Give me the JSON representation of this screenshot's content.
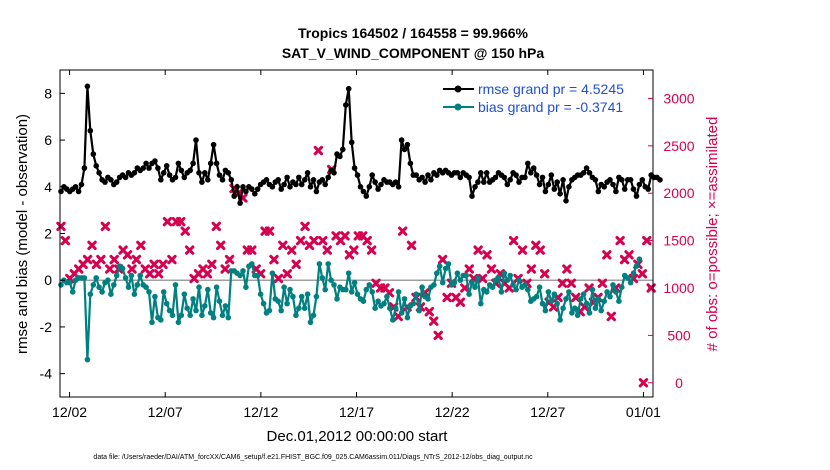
{
  "chart_data": {
    "type": "line",
    "title_line1": "Tropics 164502 / 164558 = 99.966%",
    "title_line2": "SAT_V_WIND_COMPONENT @ 150 hPa",
    "xlabel": "Dec.01,2012 00:00:00 start",
    "ylabel_left": "rmse and bias (model - observation)",
    "ylabel_right": "# of obs: o=possible; ×=assimilated",
    "x_ticks": [
      "12/02",
      "12/07",
      "12/12",
      "12/17",
      "12/22",
      "12/27",
      "01/01"
    ],
    "x_tick_days": [
      1,
      6,
      11,
      16,
      21,
      26,
      31
    ],
    "xlim": [
      0.5,
      31.5
    ],
    "y_left_ticks": [
      "8",
      "6",
      "4",
      "2",
      "0",
      "-2",
      "-4"
    ],
    "y_left_tick_values": [
      8,
      6,
      4,
      2,
      0,
      -2,
      -4
    ],
    "ylim_left": [
      -5,
      9
    ],
    "y_right_ticks": [
      "3000",
      "2500",
      "2000",
      "1500",
      "1000",
      "500",
      "0"
    ],
    "y_right_tick_values": [
      3000,
      2500,
      2000,
      1500,
      1000,
      500,
      0
    ],
    "ylim_right": [
      -150,
      3300
    ],
    "zero_line": true,
    "legend_position": "top-right",
    "legend": [
      "rmse grand pr = 4.5245",
      "bias grand pr = -0.3741"
    ],
    "colors": {
      "rmse": "#000000",
      "bias": "#008080",
      "obs": "#d6004f",
      "legend_text": "#1f4fd6"
    },
    "series": [
      {
        "name": "rmse",
        "values": [
          3.8,
          4.0,
          3.9,
          3.8,
          3.9,
          4.0,
          3.8,
          4.1,
          4.8,
          8.3,
          6.4,
          5.4,
          4.9,
          4.6,
          4.3,
          4.2,
          4.4,
          4.3,
          4.1,
          4.2,
          4.4,
          4.5,
          4.4,
          4.6,
          4.5,
          4.6,
          4.8,
          4.7,
          4.8,
          5.0,
          4.8,
          5.0,
          5.1,
          4.8,
          4.3,
          4.6,
          4.9,
          4.5,
          4.3,
          4.4,
          5.0,
          4.7,
          4.4,
          4.6,
          4.7,
          5.0,
          6.0,
          4.6,
          4.2,
          4.6,
          4.3,
          5.0,
          5.8,
          5.0,
          4.5,
          4.3,
          4.7,
          4.6,
          4.3,
          3.6,
          4.0,
          3.3,
          4.0,
          3.8,
          4.0,
          3.9,
          3.7,
          3.9,
          4.1,
          4.2,
          4.3,
          4.1,
          4.0,
          4.2,
          4.3,
          3.9,
          4.1,
          4.4,
          4.0,
          4.2,
          4.1,
          4.4,
          4.1,
          4.3,
          4.6,
          4.0,
          4.3,
          3.8,
          4.2,
          4.3,
          4.1,
          4.4,
          4.7,
          4.6,
          5.4,
          5.3,
          5.6,
          7.5,
          8.2,
          5.9,
          4.8,
          4.5,
          4.0,
          3.8,
          3.6,
          4.0,
          4.5,
          4.2,
          3.9,
          4.1,
          4.3,
          4.2,
          4.2,
          4.1,
          4.2,
          4.0,
          6.0,
          5.6,
          5.8,
          5.0,
          4.5,
          4.5,
          4.3,
          4.4,
          4.2,
          4.5,
          4.3,
          4.6,
          4.5,
          4.7,
          4.6,
          4.7,
          4.6,
          4.5,
          4.6,
          4.6,
          4.4,
          4.6,
          4.5,
          4.4,
          3.6,
          4.0,
          4.2,
          4.6,
          4.2,
          4.6,
          4.2,
          4.3,
          4.4,
          4.6,
          4.5,
          4.4,
          4.1,
          4.3,
          4.6,
          4.5,
          4.2,
          4.4,
          4.4,
          5.0,
          4.6,
          4.8,
          4.5,
          4.1,
          4.4,
          3.8,
          4.1,
          4.5,
          3.9,
          4.2,
          3.7,
          4.3,
          3.4,
          4.0,
          4.3,
          4.4,
          4.5,
          4.5,
          4.6,
          4.8,
          4.6,
          4.4,
          4.3,
          3.8,
          4.1,
          4.0,
          4.2,
          4.3,
          4.1,
          3.8,
          4.4,
          4.3,
          3.9,
          4.3,
          4.3,
          3.9,
          3.6,
          4.1,
          4.3,
          4.0,
          3.9,
          4.5,
          4.4,
          4.4,
          4.3
        ],
        "x_start_day": 0.55,
        "x_step_days": 0.1535
      },
      {
        "name": "bias",
        "values": [
          -0.2,
          0.0,
          -0.1,
          -0.1,
          -0.5,
          0.0,
          0.1,
          0.1,
          0.1,
          -3.4,
          -0.6,
          -0.2,
          0.1,
          -0.3,
          -0.5,
          -0.1,
          0.0,
          -0.6,
          -0.2,
          0.2,
          0.6,
          0.5,
          0.1,
          -0.3,
          0.2,
          -0.6,
          -0.2,
          0.2,
          -0.2,
          -0.3,
          -0.5,
          -1.8,
          -0.7,
          -1.6,
          -1.7,
          -0.5,
          -1.0,
          -1.3,
          -1.5,
          -0.2,
          -1.8,
          -1.5,
          -0.6,
          -1.2,
          -1.5,
          -0.8,
          -1.3,
          -0.3,
          -1.5,
          -1.1,
          -0.4,
          -1.4,
          -1.6,
          -0.3,
          -0.9,
          -1.5,
          -1.1,
          -1.6,
          0.4,
          0.4,
          0.3,
          0.2,
          0.4,
          -0.3,
          0.6,
          0.7,
          0.2,
          0.2,
          -0.6,
          -1.0,
          -1.4,
          -1.3,
          0.3,
          -0.8,
          -0.9,
          -1.3,
          -0.3,
          -1.0,
          -0.4,
          -0.7,
          -1.5,
          -1.2,
          -0.7,
          -1.2,
          -0.6,
          -1.8,
          -1.5,
          -0.7,
          0.7,
          0.1,
          -0.4,
          0.7,
          0.0,
          -0.2,
          -0.8,
          -0.3,
          -0.4,
          -0.4,
          0.3,
          -0.5,
          -0.1,
          -0.6,
          -0.8,
          -0.9,
          -0.4,
          -0.2,
          -0.5,
          -1.2,
          -0.9,
          -1.1,
          -1.0,
          -0.7,
          -1.2,
          -1.7,
          -1.2,
          -0.5,
          -1.4,
          -0.8,
          -1.6,
          -1.1,
          -1.0,
          -0.6,
          -1.3,
          -0.3,
          -0.7,
          -0.8,
          -0.3,
          -0.2,
          0.3,
          0.6,
          -0.1,
          0.5,
          0.7,
          -0.2,
          -0.1,
          0.3,
          0.0,
          0.2,
          0.2,
          -0.6,
          -0.1,
          -0.3,
          0.1,
          -1.0,
          -0.4,
          -0.5,
          -0.2,
          -0.3,
          0.0,
          0.1,
          -0.5,
          0.3,
          0.0,
          0.2,
          -0.2,
          -0.4,
          0.0,
          -0.3,
          -0.2,
          -0.4,
          -0.9,
          -0.8,
          -0.7,
          -0.3,
          -1.0,
          -1.3,
          -0.5,
          -0.9,
          -0.6,
          -1.0,
          -1.7,
          -1.2,
          -0.8,
          -0.5,
          -1.4,
          -1.2,
          -1.5,
          -0.8,
          -0.6,
          -1.0,
          -1.4,
          -0.4,
          -1.2,
          -0.8,
          -1.3,
          -0.9,
          -0.5,
          -0.7,
          -0.2,
          -0.5,
          -0.9,
          -0.3,
          0.2,
          0.1,
          -0.1,
          0.3,
          0.6,
          0.9
        ],
        "x_start_day": 0.55,
        "x_step_days": 0.1535
      },
      {
        "name": "obs_count",
        "marker": "x",
        "values": [
          1650,
          1500,
          1100,
          1150,
          1200,
          1250,
          1300,
          1450,
          1250,
          1300,
          1650,
          1200,
          1300,
          1200,
          1400,
          1350,
          1200,
          1300,
          1450,
          1200,
          1150,
          1250,
          1150,
          1250,
          1700,
          1300,
          1700,
          1700,
          1600,
          1400,
          1100,
          1150,
          1200,
          1150,
          1250,
          1650,
          1450,
          1200,
          1300,
          2050,
          2000,
          1950,
          1400,
          1400,
          1200,
          1150,
          1600,
          1600,
          1300,
          1100,
          1450,
          1150,
          1400,
          1250,
          1500,
          1650,
          1450,
          1500,
          2450,
          1500,
          1400,
          2250,
          1550,
          1500,
          1550,
          1350,
          1400,
          1550,
          1550,
          1500,
          1400,
          1050,
          1000,
          1000,
          950,
          800,
          700,
          1600,
          800,
          1450,
          900,
          800,
          950,
          750,
          650,
          500,
          1300,
          900,
          1050,
          900,
          850,
          1000,
          1200,
          1100,
          1400,
          1100,
          1350,
          1200,
          1050,
          1150,
          1050,
          1000,
          1500,
          1100,
          1400,
          1050,
          1200,
          1450,
          1400,
          1150,
          850,
          800,
          900,
          1050,
          1200,
          1050,
          900,
          750,
          800,
          1000,
          850,
          900,
          1050,
          1350,
          700,
          1000,
          1500,
          1300,
          1350,
          1100,
          1250,
          1150,
          1500,
          1000
        ],
        "x_start_day": 0.55,
        "x_step_days": 0.232
      }
    ],
    "terminal_obs_point": {
      "day": 31.0,
      "value": 0
    }
  },
  "footer": {
    "data_file": "data file: /Users/raeder/DAI/ATM_forcXX/CAM6_setup/f.e21.FHIST_BGC.f09_025.CAM6assim.011/Diags_NTrS_2012-12/obs_diag_output.nc"
  }
}
